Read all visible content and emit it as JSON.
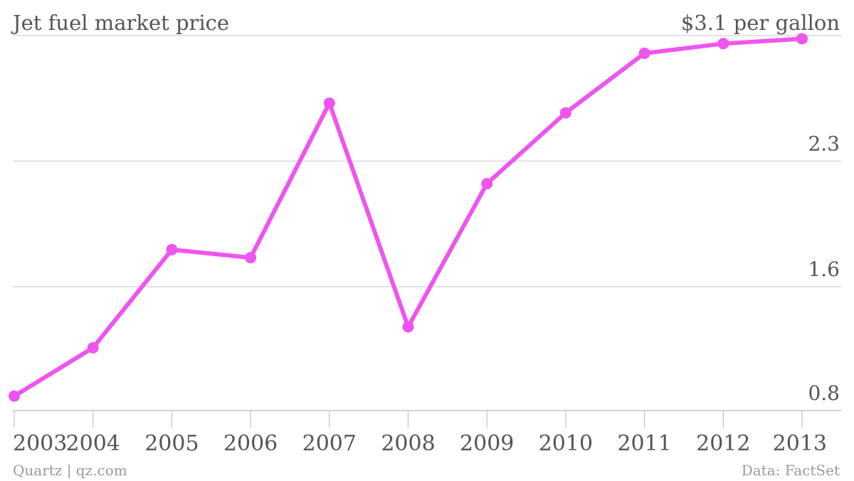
{
  "source": "Quartz | qz.com",
  "credit": "Data: FactSet",
  "chart_data": {
    "type": "line",
    "title": "Jet fuel market price",
    "unit_label": "$3.1 per gallon",
    "xlabel": "",
    "ylabel": "",
    "x": [
      "2003",
      "2004",
      "2005",
      "2006",
      "2007",
      "2008",
      "2009",
      "2010",
      "2011",
      "2012",
      "2013"
    ],
    "series": [
      {
        "values": [
          0.87,
          1.17,
          1.78,
          1.73,
          2.69,
          1.3,
          2.19,
          2.63,
          3.0,
          3.06,
          3.09
        ],
        "color": "#ee55ee"
      }
    ],
    "y_ticks": [
      "0.8",
      "1.6",
      "2.3"
    ],
    "y_tick_values": [
      0.78,
      1.55,
      2.33
    ],
    "ylim": [
      0.78,
      3.11
    ],
    "grid": true,
    "legend": "none"
  }
}
